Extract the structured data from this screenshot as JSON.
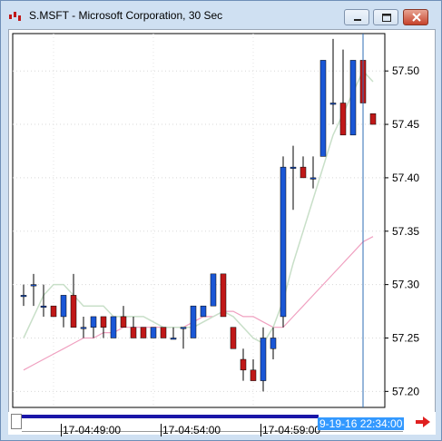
{
  "window": {
    "title": "S.MSFT - Microsoft Corporation, 30 Sec"
  },
  "icons": {
    "app": "candlestick-icon",
    "minimize": "minimize-icon",
    "restore": "restore-icon",
    "close": "close-icon",
    "scroll_right": "arrow-right-icon"
  },
  "colors": {
    "up": "#1a57d6",
    "down": "#c01818",
    "ma_fast": "#c8dfc8",
    "ma_slow": "#f0a0c0",
    "cursor": "#2e6db4",
    "cursor_label_bg": "#3399ff",
    "timebar": "#1a16a8",
    "scroll_arrow": "#e02020"
  },
  "time_axis": {
    "labels": [
      "17-04:49:00",
      "17-04:54:00",
      "17-04:59:00"
    ],
    "cursor_label": "9-19-16 22:34:00"
  },
  "chart_data": {
    "type": "candlestick",
    "y_ticks": [
      "57.50",
      "57.45",
      "57.40",
      "57.35",
      "57.30",
      "57.25",
      "57.20"
    ],
    "ylim": [
      57.185,
      57.535
    ],
    "candles": [
      {
        "o": 57.29,
        "h": 57.3,
        "l": 57.28,
        "c": 57.29
      },
      {
        "o": 57.3,
        "h": 57.31,
        "l": 57.28,
        "c": 57.3
      },
      {
        "o": 57.28,
        "h": 57.3,
        "l": 57.27,
        "c": 57.28
      },
      {
        "o": 57.28,
        "h": 57.28,
        "l": 57.27,
        "c": 57.27
      },
      {
        "o": 57.27,
        "h": 57.29,
        "l": 57.26,
        "c": 57.29
      },
      {
        "o": 57.29,
        "h": 57.31,
        "l": 57.26,
        "c": 57.26
      },
      {
        "o": 57.26,
        "h": 57.27,
        "l": 57.25,
        "c": 57.26
      },
      {
        "o": 57.26,
        "h": 57.27,
        "l": 57.25,
        "c": 57.27
      },
      {
        "o": 57.27,
        "h": 57.27,
        "l": 57.25,
        "c": 57.26
      },
      {
        "o": 57.25,
        "h": 57.27,
        "l": 57.25,
        "c": 57.27
      },
      {
        "o": 57.27,
        "h": 57.28,
        "l": 57.26,
        "c": 57.26
      },
      {
        "o": 57.26,
        "h": 57.27,
        "l": 57.25,
        "c": 57.25
      },
      {
        "o": 57.26,
        "h": 57.26,
        "l": 57.25,
        "c": 57.25
      },
      {
        "o": 57.25,
        "h": 57.26,
        "l": 57.25,
        "c": 57.26
      },
      {
        "o": 57.26,
        "h": 57.26,
        "l": 57.25,
        "c": 57.25
      },
      {
        "o": 57.25,
        "h": 57.26,
        "l": 57.25,
        "c": 57.25
      },
      {
        "o": 57.26,
        "h": 57.26,
        "l": 57.24,
        "c": 57.26
      },
      {
        "o": 57.25,
        "h": 57.28,
        "l": 57.25,
        "c": 57.28
      },
      {
        "o": 57.27,
        "h": 57.28,
        "l": 57.27,
        "c": 57.28
      },
      {
        "o": 57.28,
        "h": 57.31,
        "l": 57.28,
        "c": 57.31
      },
      {
        "o": 57.31,
        "h": 57.31,
        "l": 57.27,
        "c": 57.27
      },
      {
        "o": 57.26,
        "h": 57.26,
        "l": 57.24,
        "c": 57.24
      },
      {
        "o": 57.23,
        "h": 57.24,
        "l": 57.21,
        "c": 57.22
      },
      {
        "o": 57.22,
        "h": 57.23,
        "l": 57.21,
        "c": 57.21
      },
      {
        "o": 57.21,
        "h": 57.26,
        "l": 57.2,
        "c": 57.25
      },
      {
        "o": 57.24,
        "h": 57.26,
        "l": 57.23,
        "c": 57.25
      },
      {
        "o": 57.27,
        "h": 57.42,
        "l": 57.26,
        "c": 57.41
      },
      {
        "o": 57.41,
        "h": 57.43,
        "l": 57.37,
        "c": 57.41
      },
      {
        "o": 57.41,
        "h": 57.42,
        "l": 57.4,
        "c": 57.4
      },
      {
        "o": 57.4,
        "h": 57.42,
        "l": 57.39,
        "c": 57.4
      },
      {
        "o": 57.42,
        "h": 57.51,
        "l": 57.42,
        "c": 57.51
      },
      {
        "o": 57.47,
        "h": 57.53,
        "l": 57.45,
        "c": 57.47
      },
      {
        "o": 57.47,
        "h": 57.52,
        "l": 57.44,
        "c": 57.44
      },
      {
        "o": 57.44,
        "h": 57.51,
        "l": 57.44,
        "c": 57.51
      },
      {
        "o": 57.51,
        "h": 57.51,
        "l": 57.44,
        "c": 57.47
      },
      {
        "o": 57.46,
        "h": 57.46,
        "l": 57.45,
        "c": 57.45
      }
    ],
    "ma_fast": [
      57.25,
      57.27,
      57.29,
      57.3,
      57.3,
      57.29,
      57.28,
      57.28,
      57.28,
      57.27,
      57.27,
      57.27,
      57.27,
      57.265,
      57.26,
      57.26,
      57.26,
      57.26,
      57.265,
      57.27,
      57.275,
      57.27,
      57.26,
      57.25,
      57.245,
      57.26,
      57.285,
      57.32,
      57.35,
      57.38,
      57.41,
      57.44,
      57.46,
      57.48,
      57.5,
      57.49
    ],
    "ma_slow": [
      57.22,
      57.225,
      57.23,
      57.235,
      57.24,
      57.245,
      57.25,
      57.25,
      57.255,
      57.255,
      57.26,
      57.26,
      57.26,
      57.26,
      57.26,
      57.26,
      57.26,
      57.265,
      57.27,
      57.27,
      57.275,
      57.275,
      57.27,
      57.27,
      57.265,
      57.26,
      57.26,
      57.27,
      57.28,
      57.29,
      57.3,
      57.31,
      57.32,
      57.33,
      57.34,
      57.345
    ]
  }
}
